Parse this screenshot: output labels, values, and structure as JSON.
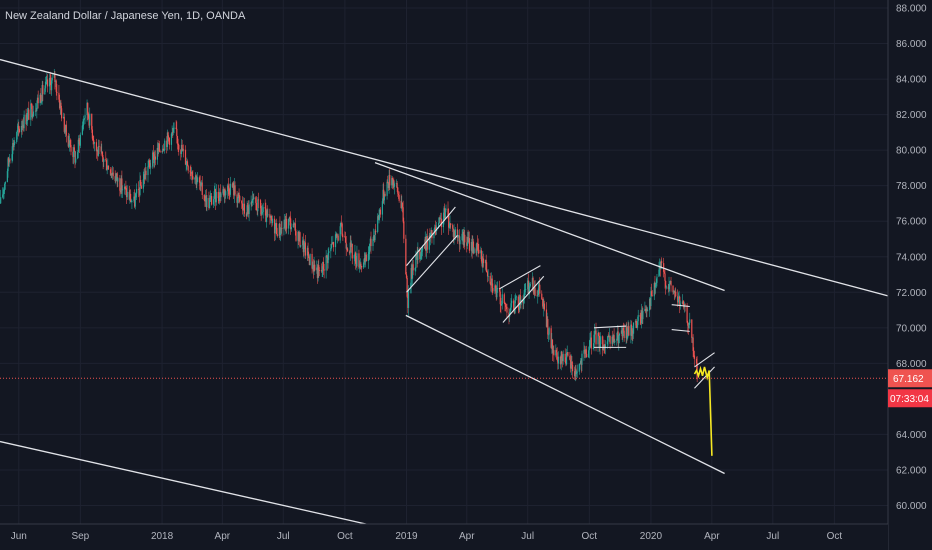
{
  "chart_data": {
    "type": "candlestick",
    "title": "New Zealand Dollar / Japanese Yen, 1D, OANDA",
    "symbol": "NZDJPY",
    "timeframe": "1D",
    "source": "OANDA",
    "ylim": [
      58.9,
      88.8
    ],
    "y_ticks": [
      "88.000",
      "86.000",
      "84.000",
      "82.000",
      "80.000",
      "78.000",
      "76.000",
      "74.000",
      "72.000",
      "70.000",
      "68.000",
      "64.000",
      "62.000",
      "60.000"
    ],
    "x_ticks": [
      "Jun",
      "Sep",
      "2018",
      "Apr",
      "Jul",
      "Oct",
      "2019",
      "Apr",
      "Jul",
      "Oct",
      "2020",
      "Apr",
      "Jul",
      "Oct"
    ],
    "xlim": [
      "2017-05-04",
      "2020-12-20"
    ],
    "last_price": {
      "label": "67.162",
      "value": 67.162
    },
    "countdown": "07:33:04",
    "price_path": [
      [
        "2017-05-05",
        77.0
      ],
      [
        "2017-05-20",
        80.0
      ],
      [
        "2017-06-05",
        81.5
      ],
      [
        "2017-06-25",
        82.5
      ],
      [
        "2017-07-10",
        83.5
      ],
      [
        "2017-07-25",
        84.0
      ],
      [
        "2017-08-10",
        81.0
      ],
      [
        "2017-08-25",
        79.5
      ],
      [
        "2017-09-10",
        82.5
      ],
      [
        "2017-09-25",
        80.0
      ],
      [
        "2017-10-15",
        79.0
      ],
      [
        "2017-11-01",
        78.0
      ],
      [
        "2017-11-20",
        77.0
      ],
      [
        "2017-12-10",
        79.0
      ],
      [
        "2018-01-05",
        80.5
      ],
      [
        "2018-01-20",
        81.0
      ],
      [
        "2018-02-05",
        79.5
      ],
      [
        "2018-02-20",
        78.5
      ],
      [
        "2018-03-10",
        77.0
      ],
      [
        "2018-03-25",
        77.5
      ],
      [
        "2018-04-15",
        78.0
      ],
      [
        "2018-05-05",
        76.5
      ],
      [
        "2018-05-20",
        77.0
      ],
      [
        "2018-06-10",
        76.0
      ],
      [
        "2018-06-25",
        75.5
      ],
      [
        "2018-07-10",
        76.0
      ],
      [
        "2018-07-25",
        75.0
      ],
      [
        "2018-08-15",
        73.5
      ],
      [
        "2018-08-25",
        73.0
      ],
      [
        "2018-09-10",
        74.5
      ],
      [
        "2018-09-25",
        75.5
      ],
      [
        "2018-10-15",
        74.0
      ],
      [
        "2018-10-30",
        73.5
      ],
      [
        "2018-11-15",
        75.5
      ],
      [
        "2018-12-01",
        78.0
      ],
      [
        "2018-12-10",
        78.5
      ],
      [
        "2018-12-25",
        77.0
      ],
      [
        "2019-01-03",
        71.5
      ],
      [
        "2019-01-10",
        73.5
      ],
      [
        "2019-01-25",
        74.5
      ],
      [
        "2019-02-15",
        75.5
      ],
      [
        "2019-03-01",
        76.5
      ],
      [
        "2019-03-10",
        75.5
      ],
      [
        "2019-03-25",
        75.0
      ],
      [
        "2019-04-15",
        74.5
      ],
      [
        "2019-04-30",
        73.5
      ],
      [
        "2019-05-15",
        72.0
      ],
      [
        "2019-06-01",
        71.0
      ],
      [
        "2019-06-20",
        71.5
      ],
      [
        "2019-07-05",
        72.5
      ],
      [
        "2019-07-20",
        72.0
      ],
      [
        "2019-08-05",
        69.0
      ],
      [
        "2019-08-15",
        68.0
      ],
      [
        "2019-08-25",
        68.5
      ],
      [
        "2019-09-10",
        67.5
      ],
      [
        "2019-09-25",
        68.5
      ],
      [
        "2019-10-10",
        69.5
      ],
      [
        "2019-10-25",
        69.0
      ],
      [
        "2019-11-15",
        69.5
      ],
      [
        "2019-12-01",
        69.8
      ],
      [
        "2019-12-15",
        70.5
      ],
      [
        "2020-01-05",
        72.0
      ],
      [
        "2020-01-15",
        73.5
      ],
      [
        "2020-01-25",
        72.5
      ],
      [
        "2020-02-05",
        72.0
      ],
      [
        "2020-02-20",
        71.0
      ],
      [
        "2020-02-29",
        70.0
      ],
      [
        "2020-03-05",
        68.5
      ],
      [
        "2020-03-10",
        67.5
      ]
    ],
    "drawings": {
      "trendlines": [
        {
          "from": [
            "2017-05-04",
            85.1
          ],
          "to": [
            "2020-12-20",
            71.8
          ]
        },
        {
          "from": [
            "2018-11-15",
            79.3
          ],
          "to": [
            "2020-04-20",
            72.1
          ]
        },
        {
          "from": [
            "2018-12-31",
            70.7
          ],
          "to": [
            "2020-04-20",
            61.8
          ]
        },
        {
          "from": [
            "2017-05-04",
            63.6
          ],
          "to": [
            "2018-11-08",
            58.9
          ]
        }
      ],
      "channels": [
        {
          "from": [
            "2019-01-01",
            73.5
          ],
          "to": [
            "2019-03-15",
            76.8
          ]
        },
        {
          "from": [
            "2019-01-01",
            72.0
          ],
          "to": [
            "2019-03-18",
            75.2
          ]
        },
        {
          "from": [
            "2019-05-20",
            72.2
          ],
          "to": [
            "2019-07-20",
            73.5
          ]
        },
        {
          "from": [
            "2019-05-25",
            70.3
          ],
          "to": [
            "2019-07-25",
            72.9
          ]
        },
        {
          "from": [
            "2019-10-08",
            70.0
          ],
          "to": [
            "2019-11-25",
            70.1
          ]
        },
        {
          "from": [
            "2019-10-08",
            68.9
          ],
          "to": [
            "2019-11-25",
            68.9
          ]
        },
        {
          "from": [
            "2020-02-01",
            71.3
          ],
          "to": [
            "2020-02-28",
            71.2
          ]
        },
        {
          "from": [
            "2020-02-01",
            69.9
          ],
          "to": [
            "2020-02-28",
            69.8
          ]
        },
        {
          "from": [
            "2020-03-06",
            67.8
          ],
          "to": [
            "2020-04-05",
            68.6
          ]
        },
        {
          "from": [
            "2020-03-06",
            66.6
          ],
          "to": [
            "2020-04-05",
            67.8
          ]
        }
      ],
      "projection": [
        [
          "2020-03-06",
          67.4
        ],
        [
          "2020-03-09",
          67.6
        ],
        [
          "2020-03-12",
          67.3
        ],
        [
          "2020-03-15",
          67.7
        ],
        [
          "2020-03-18",
          67.3
        ],
        [
          "2020-03-21",
          67.8
        ],
        [
          "2020-03-25",
          67.2
        ],
        [
          "2020-03-28",
          67.6
        ],
        [
          "2020-04-01",
          62.8
        ]
      ]
    }
  },
  "colors": {
    "background": "#131722",
    "grid": "#1e2230",
    "axis_text": "#b2b5be",
    "up": "#26a69a",
    "down": "#ef5350",
    "trendline": "#e1e3e8",
    "projection": "#f6e823",
    "price_badge": "#ef5350"
  }
}
